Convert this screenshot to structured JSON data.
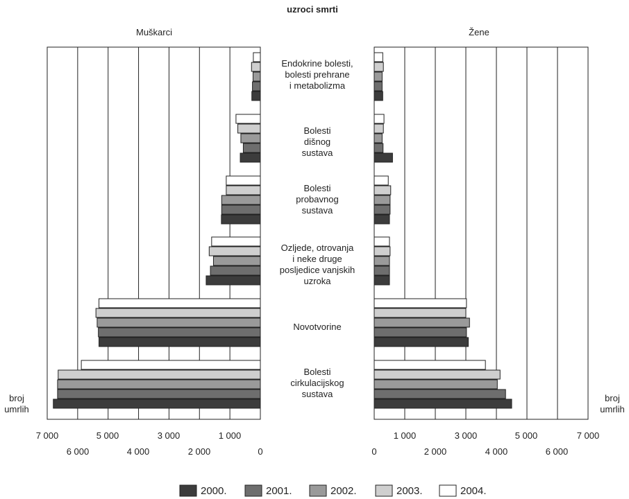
{
  "chart_data": {
    "type": "bar",
    "orientation": "horizontal",
    "layout": "butterfly",
    "title": "uzroci smrti",
    "categories": [
      "Endokrine bolesti,\nbolesti prehrane\ni metabolizma",
      "Bolesti\ndišnog\nsustava",
      "Bolesti\nprobavnog\nsustava",
      "Ozljede, otrovanja\ni neke druge\nposljedice vanjskih\nuzroka",
      "Novotvorine",
      "Bolesti\ncirkulacijskog\nsustava"
    ],
    "years": [
      "2000.",
      "2001.",
      "2002.",
      "2003.",
      "2004."
    ],
    "colors": {
      "2000.": "#3c3c3c",
      "2001.": "#6e6e6e",
      "2002.": "#9a9a9a",
      "2003.": "#cfcfcf",
      "2004.": "#ffffff"
    },
    "axis_label": "broj\numrlih",
    "panels": [
      {
        "name": "Muškarci",
        "direction": "left",
        "xlim": [
          0,
          7000
        ],
        "ticks_upper": [
          "7 000",
          "5 000",
          "3 000",
          "1 000"
        ],
        "ticks_lower": [
          "6 000",
          "4 000",
          "2 000",
          "0"
        ],
        "series": [
          {
            "name": "2000.",
            "values": [
              280,
              660,
              1280,
              1780,
              5300,
              6800
            ]
          },
          {
            "name": "2001.",
            "values": [
              260,
              560,
              1270,
              1640,
              5320,
              6660
            ]
          },
          {
            "name": "2002.",
            "values": [
              240,
              640,
              1270,
              1540,
              5360,
              6660
            ]
          },
          {
            "name": "2003.",
            "values": [
              290,
              740,
              1120,
              1680,
              5400,
              6640
            ]
          },
          {
            "name": "2004.",
            "values": [
              230,
              800,
              1120,
              1600,
              5300,
              5880
            ]
          }
        ]
      },
      {
        "name": "Žene",
        "direction": "right",
        "xlim": [
          0,
          7000
        ],
        "ticks_upper": [
          "1 000",
          "3 000",
          "5 000",
          "7 000"
        ],
        "ticks_lower": [
          "0",
          "2 000",
          "4 000",
          "6 000"
        ],
        "series": [
          {
            "name": "2000.",
            "values": [
              280,
              600,
              500,
              500,
              3080,
              4500
            ]
          },
          {
            "name": "2001.",
            "values": [
              260,
              290,
              520,
              500,
              3020,
              4300
            ]
          },
          {
            "name": "2002.",
            "values": [
              260,
              260,
              520,
              500,
              3120,
              4030
            ]
          },
          {
            "name": "2003.",
            "values": [
              300,
              300,
              540,
              520,
              3000,
              4120
            ]
          },
          {
            "name": "2004.",
            "values": [
              280,
              320,
              460,
              500,
              3020,
              3640
            ]
          }
        ]
      }
    ]
  }
}
